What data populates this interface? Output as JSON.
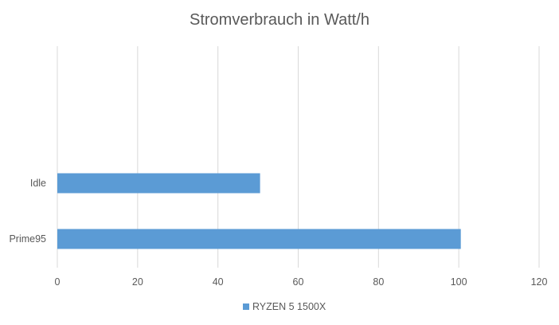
{
  "chart_data": {
    "type": "bar",
    "orientation": "horizontal",
    "title": "Stromverbrauch in Watt/h",
    "categories": [
      "Idle",
      "Prime95"
    ],
    "series": [
      {
        "name": "RYZEN 5 1500X",
        "values": [
          50.5,
          100.5
        ],
        "color": "#5b9bd5"
      }
    ],
    "xlim": [
      0,
      120
    ],
    "xticks": [
      0,
      20,
      40,
      60,
      80,
      100,
      120
    ],
    "xlabel": "",
    "ylabel": "",
    "grid": true,
    "legend_position": "bottom"
  }
}
